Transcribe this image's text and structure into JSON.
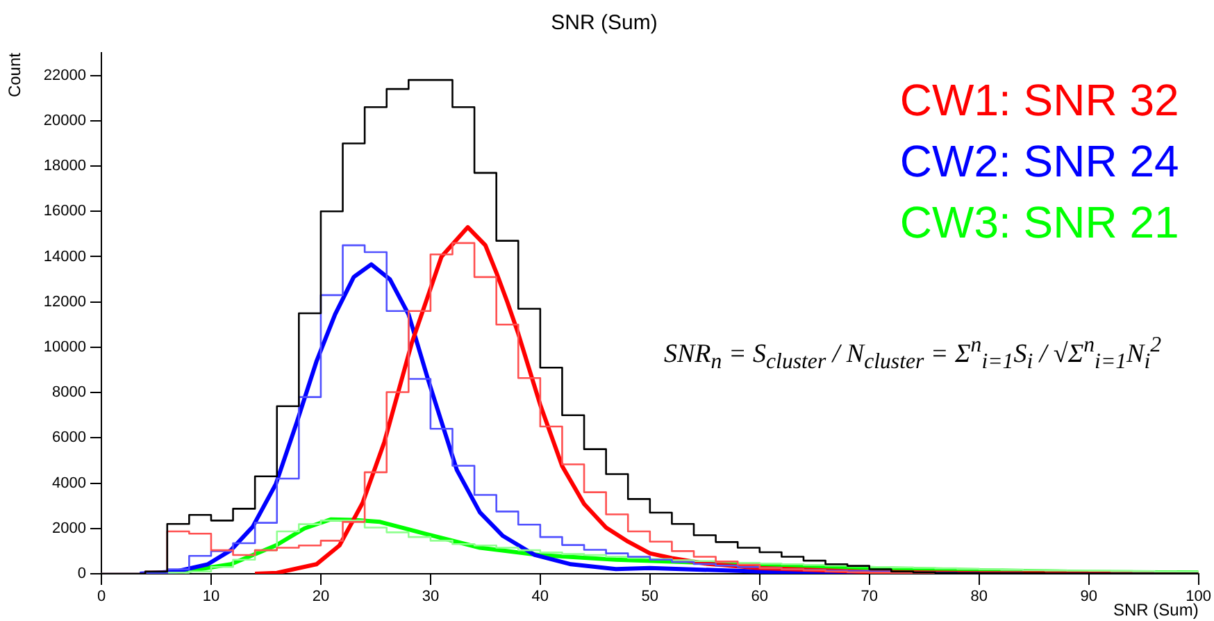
{
  "chart_data": {
    "type": "histogram",
    "title": "SNR (Sum)",
    "xlabel": "SNR (Sum)",
    "ylabel": "Count",
    "bins": [
      0,
      2,
      4,
      6,
      8,
      10,
      12,
      14,
      16,
      18,
      20,
      22,
      24,
      26,
      28,
      30,
      32,
      34,
      36,
      38,
      40,
      42,
      44,
      46,
      48,
      50,
      52,
      54,
      56,
      58,
      60,
      62,
      64,
      66,
      68,
      70,
      72,
      74,
      76,
      78,
      80,
      82,
      84,
      86,
      88,
      90,
      92,
      94,
      96,
      98,
      100
    ],
    "xlim": [
      0,
      100
    ],
    "xticks": [
      0,
      10,
      20,
      30,
      40,
      50,
      60,
      70,
      80,
      90,
      100
    ],
    "ylim": [
      0,
      23000
    ],
    "yticks": [
      0,
      2000,
      4000,
      6000,
      8000,
      10000,
      12000,
      14000,
      16000,
      18000,
      20000,
      22000
    ],
    "grid": false,
    "legend": "top right",
    "marker": "none",
    "annotations": [
      "SNR$_{n}$ = S$_{cluster}$ / N$_{cluster}$ = Σ$^{n}$$_{i=1}$S$_{i}$ / √Σ$^{n}$$_{i=1}$N$_{i}$$^{2}$"
    ],
    "series": [
      {
        "type": "histogram",
        "color": "#000000",
        "values": [
          0,
          0,
          100,
          2200,
          2600,
          2350,
          2870,
          4300,
          7400,
          11500,
          16000,
          19000,
          20600,
          21400,
          21800,
          21800,
          20600,
          17700,
          14700,
          11700,
          9100,
          7000,
          5500,
          4400,
          3300,
          2700,
          2200,
          1700,
          1400,
          1150,
          950,
          750,
          580,
          420,
          350,
          200,
          100,
          60,
          40,
          30,
          20,
          20,
          20,
          10,
          10,
          10,
          10,
          10,
          10,
          10
        ]
      },
      {
        "type": "histogram",
        "color": "#ff5050",
        "values": [
          0,
          0,
          100,
          1870,
          1770,
          1040,
          830,
          1040,
          1150,
          1250,
          1460,
          2290,
          4480,
          8020,
          11600,
          14100,
          14600,
          13100,
          11000,
          8640,
          6500,
          4830,
          3600,
          2620,
          1870,
          1420,
          1000,
          750,
          540,
          400,
          250,
          200,
          150,
          100,
          70,
          50,
          30,
          20,
          20,
          10,
          10,
          10,
          10,
          10,
          0,
          0,
          0,
          0,
          0,
          0
        ]
      },
      {
        "type": "histogram",
        "color": "#5050ff",
        "values": [
          0,
          0,
          0,
          200,
          790,
          1000,
          1350,
          2250,
          4200,
          7800,
          12300,
          14500,
          14200,
          11600,
          8600,
          6400,
          4770,
          3480,
          2750,
          2170,
          1620,
          1270,
          1060,
          900,
          750,
          620,
          520,
          430,
          360,
          300,
          250,
          200,
          170,
          140,
          120,
          100,
          80,
          60,
          50,
          40,
          30,
          30,
          20,
          20,
          10,
          10,
          10,
          10,
          0,
          0
        ]
      },
      {
        "type": "histogram",
        "color": "#90ff90",
        "values": [
          0,
          0,
          0,
          50,
          100,
          300,
          620,
          1040,
          1870,
          2190,
          2350,
          2350,
          2040,
          1830,
          1620,
          1460,
          1310,
          1250,
          1150,
          1040,
          940,
          870,
          830,
          750,
          700,
          650,
          600,
          560,
          520,
          480,
          450,
          420,
          390,
          360,
          330,
          300,
          280,
          260,
          240,
          220,
          200,
          180,
          160,
          150,
          140,
          130,
          120,
          110,
          100,
          90
        ]
      },
      {
        "type": "line",
        "name": "CW1: SNR 32",
        "color": "#ff0000",
        "x": [
          14,
          16,
          19.6,
          21.7,
          23.8,
          25.8,
          28.3,
          31,
          33.4,
          35,
          36,
          37,
          38,
          40,
          42,
          44,
          46,
          48,
          50,
          52,
          55,
          60,
          70,
          80,
          90,
          100
        ],
        "values": [
          0,
          40,
          420,
          1250,
          3120,
          5830,
          10200,
          14000,
          15300,
          14500,
          13300,
          12000,
          10600,
          7460,
          4750,
          3080,
          2040,
          1420,
          900,
          690,
          450,
          250,
          80,
          20,
          10,
          0
        ]
      },
      {
        "type": "line",
        "name": "CW2: SNR 24",
        "color": "#0000ff",
        "x": [
          3.5,
          6.8,
          9.7,
          11.8,
          13.8,
          15.9,
          17.8,
          19.6,
          21.3,
          23,
          24.6,
          26.3,
          28,
          29.8,
          32.4,
          34.5,
          36.6,
          39.5,
          42.8,
          46.9,
          50,
          60,
          70,
          80,
          94
        ],
        "values": [
          0,
          100,
          420,
          1040,
          2080,
          3960,
          6670,
          9370,
          11450,
          13100,
          13660,
          13000,
          11450,
          8540,
          4580,
          2710,
          1670,
          830,
          420,
          210,
          250,
          100,
          30,
          10,
          0
        ]
      },
      {
        "type": "line",
        "name": "CW3: SNR 21",
        "color": "#00ff00",
        "x": [
          7.6,
          11.8,
          15.9,
          18.5,
          20.9,
          23,
          25.4,
          29.5,
          34.5,
          39.9,
          46.9,
          60,
          70,
          80,
          90,
          100
        ],
        "values": [
          100,
          420,
          1250,
          2000,
          2400,
          2380,
          2290,
          1770,
          1150,
          830,
          620,
          400,
          250,
          150,
          80,
          50
        ]
      }
    ]
  }
}
